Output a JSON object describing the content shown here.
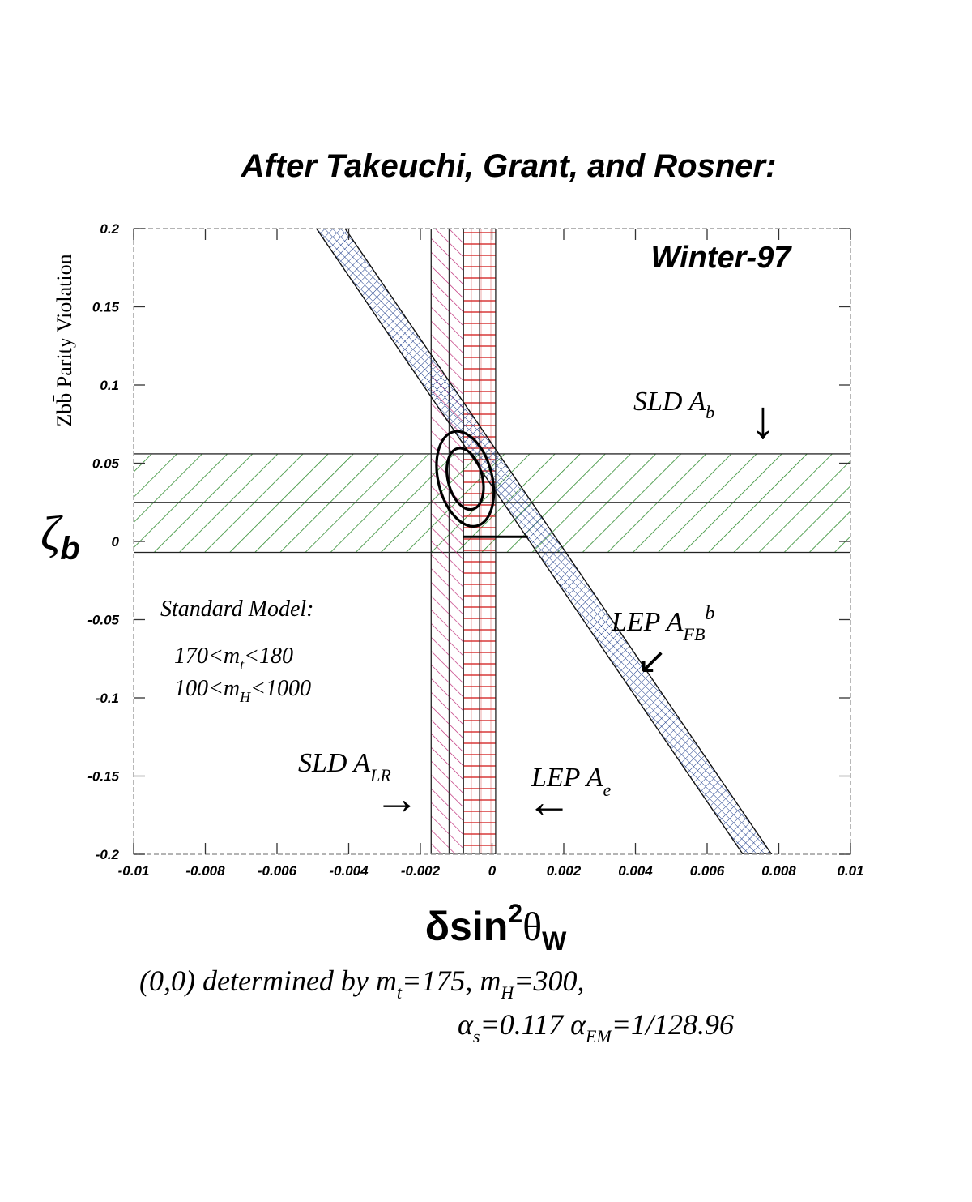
{
  "title": "After Takeuchi, Grant, and Rosner:",
  "chart_data": {
    "type": "band-overlay",
    "subtitle": "Winter-97",
    "xlabel": {
      "main": "δsin",
      "sup": "2",
      "theta": "θ",
      "sub": "W"
    },
    "ylabel": {
      "symbol": "ζ",
      "sub": "b",
      "desc": "Zbb̄ Parity Violation"
    },
    "xlim": [
      -0.01,
      0.01
    ],
    "ylim": [
      -0.2,
      0.2
    ],
    "xticks": [
      -0.01,
      -0.008,
      -0.006,
      -0.004,
      -0.002,
      0,
      0.002,
      0.004,
      0.006,
      0.008,
      0.01
    ],
    "xtick_labels": [
      "-0.01",
      "-0.008",
      "-0.006",
      "-0.004",
      "-0.002",
      "0",
      "0.002",
      "0.004",
      "0.006",
      "0.008",
      "0.01"
    ],
    "yticks": [
      0.2,
      0.15,
      0.1,
      0.05,
      0,
      -0.05,
      -0.1,
      -0.15,
      -0.2
    ],
    "ytick_labels": [
      "0.2",
      "0.15",
      "0.1",
      "0.05",
      "0",
      "-0.05",
      "-0.1",
      "-0.15",
      "-0.2"
    ],
    "bands": [
      {
        "name": "SLD A_b",
        "kind": "horizontal",
        "range": [
          -0.007,
          0.056
        ],
        "center": 0.025,
        "color": "#2e8b2e"
      },
      {
        "name": "SLD A_LR",
        "kind": "vertical",
        "range": [
          -0.0017,
          -0.0008
        ],
        "center": -0.0012,
        "color": "#c0307a"
      },
      {
        "name": "LEP A_e",
        "kind": "vertical",
        "range": [
          -0.0008,
          0.0001
        ],
        "center": -0.00035,
        "color": "#d42a2a"
      },
      {
        "name": "LEP A_FB^b",
        "kind": "diagonal",
        "p1": [
          -0.0045,
          0.2
        ],
        "p2": [
          0.0074,
          -0.2
        ],
        "halfwidth": 0.0004,
        "color": "#1a3a8a"
      }
    ],
    "ellipses": [
      {
        "center": [
          -0.00075,
          0.04
        ],
        "rx": 0.00075,
        "ry": 0.031,
        "angle_deg": -14,
        "color": "#000000"
      },
      {
        "center": [
          -0.00075,
          0.04
        ],
        "rx": 0.00048,
        "ry": 0.02,
        "angle_deg": -14,
        "color": "#000000"
      }
    ],
    "sm_segment": {
      "x": [
        -0.0008,
        0.001
      ],
      "y": 0.003
    },
    "annotations": {
      "sld_ab": {
        "main": "SLD A",
        "sub": "b",
        "arrow": "↓"
      },
      "lep_afb": {
        "main": "LEP A",
        "sub": "FB",
        "sup": "b",
        "arrow": "↙"
      },
      "sld_alr": {
        "main": "SLD A",
        "sub": "LR",
        "arrow": "→"
      },
      "lep_ae": {
        "main": "LEP A",
        "sub": "e",
        "arrow": "←"
      },
      "sm_title": "Standard Model:",
      "sm_line1": {
        "pre": "170<m",
        "sub": "t",
        "post": "<180"
      },
      "sm_line2": {
        "pre": "100<m",
        "sub": "H",
        "post": "<1000"
      }
    }
  },
  "caption": {
    "line1": {
      "a": "(0,0) determined by m",
      "a_sub": "t",
      "b": "=175, m",
      "b_sub": "H",
      "c": "=300,"
    },
    "line2": {
      "a": "α",
      "a_sub": "s",
      "b": "=0.117 α",
      "b_sub": "EM",
      "c": "=1/128.96"
    }
  }
}
